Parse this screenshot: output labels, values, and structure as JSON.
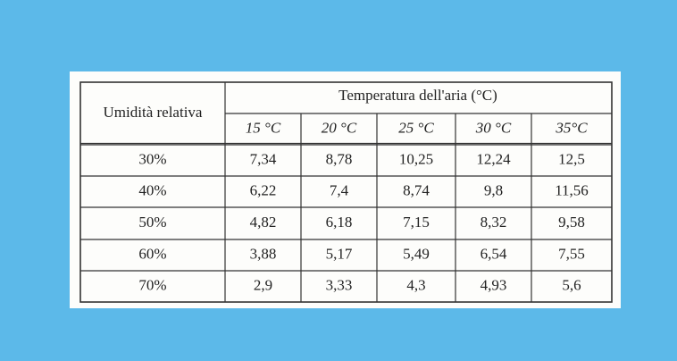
{
  "table": {
    "row_header": "Umidità relativa",
    "group_header": "Temperatura dell'aria (°C)",
    "columns": [
      "15 °C",
      "20 °C",
      "25 °C",
      "30 °C",
      "35°C"
    ],
    "rows": [
      {
        "label": "30%",
        "values": [
          "7,34",
          "8,78",
          "10,25",
          "12,24",
          "12,5"
        ]
      },
      {
        "label": "40%",
        "values": [
          "6,22",
          "7,4",
          "8,74",
          "9,8",
          "11,56"
        ]
      },
      {
        "label": "50%",
        "values": [
          "4,82",
          "6,18",
          "7,15",
          "8,32",
          "9,58"
        ]
      },
      {
        "label": "60%",
        "values": [
          "3,88",
          "5,17",
          "5,49",
          "6,54",
          "7,55"
        ]
      },
      {
        "label": "70%",
        "values": [
          "2,9",
          "3,33",
          "4,3",
          "4,93",
          "5,6"
        ]
      }
    ]
  }
}
